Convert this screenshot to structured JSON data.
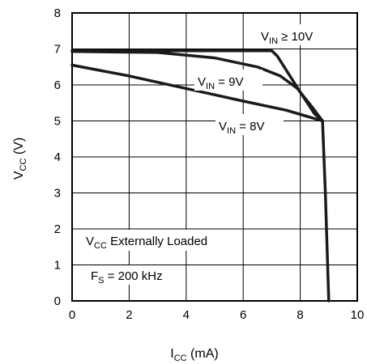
{
  "chart_data": {
    "type": "line",
    "xlabel": {
      "main": "I",
      "sub": "CC",
      "rest": " (mA)"
    },
    "ylabel": {
      "main": "V",
      "sub": "CC",
      "rest": " (V)"
    },
    "xlim": [
      0,
      10
    ],
    "ylim": [
      0,
      8
    ],
    "x_ticks": [
      "0",
      "2",
      "4",
      "6",
      "8",
      "10"
    ],
    "y_ticks": [
      "0",
      "1",
      "2",
      "3",
      "4",
      "5",
      "6",
      "7",
      "8"
    ],
    "grid": true,
    "line_color": "#1a1a1a",
    "series": [
      {
        "label": {
          "main": "V",
          "sub": "IN",
          "rest": " ≥ 10V"
        },
        "points": [
          [
            0,
            6.95
          ],
          [
            7.0,
            6.95
          ],
          [
            7.2,
            6.8
          ],
          [
            7.6,
            6.3
          ],
          [
            8.0,
            5.8
          ],
          [
            8.5,
            5.2
          ],
          [
            8.78,
            5.0
          ]
        ]
      },
      {
        "label": {
          "main": "V",
          "sub": "IN",
          "rest": " = 9V"
        },
        "points": [
          [
            0,
            6.93
          ],
          [
            3.0,
            6.9
          ],
          [
            5.0,
            6.75
          ],
          [
            6.5,
            6.5
          ],
          [
            7.3,
            6.25
          ],
          [
            7.9,
            5.9
          ],
          [
            8.4,
            5.4
          ],
          [
            8.78,
            5.0
          ]
        ]
      },
      {
        "label": {
          "main": "V",
          "sub": "IN",
          "rest": " = 8V"
        },
        "points": [
          [
            0,
            6.55
          ],
          [
            2.0,
            6.25
          ],
          [
            4.0,
            5.9
          ],
          [
            6.0,
            5.55
          ],
          [
            7.5,
            5.3
          ],
          [
            8.78,
            5.0
          ]
        ]
      },
      {
        "label": null,
        "points": [
          [
            8.78,
            5.0
          ],
          [
            8.88,
            3.0
          ],
          [
            9.0,
            0.0
          ]
        ]
      }
    ],
    "annotations": {
      "loaded": {
        "main": "V",
        "sub": "CC",
        "rest": " Externally Loaded"
      },
      "freq": {
        "main": "F",
        "sub": "S",
        "rest": " = 200 kHz"
      }
    }
  }
}
